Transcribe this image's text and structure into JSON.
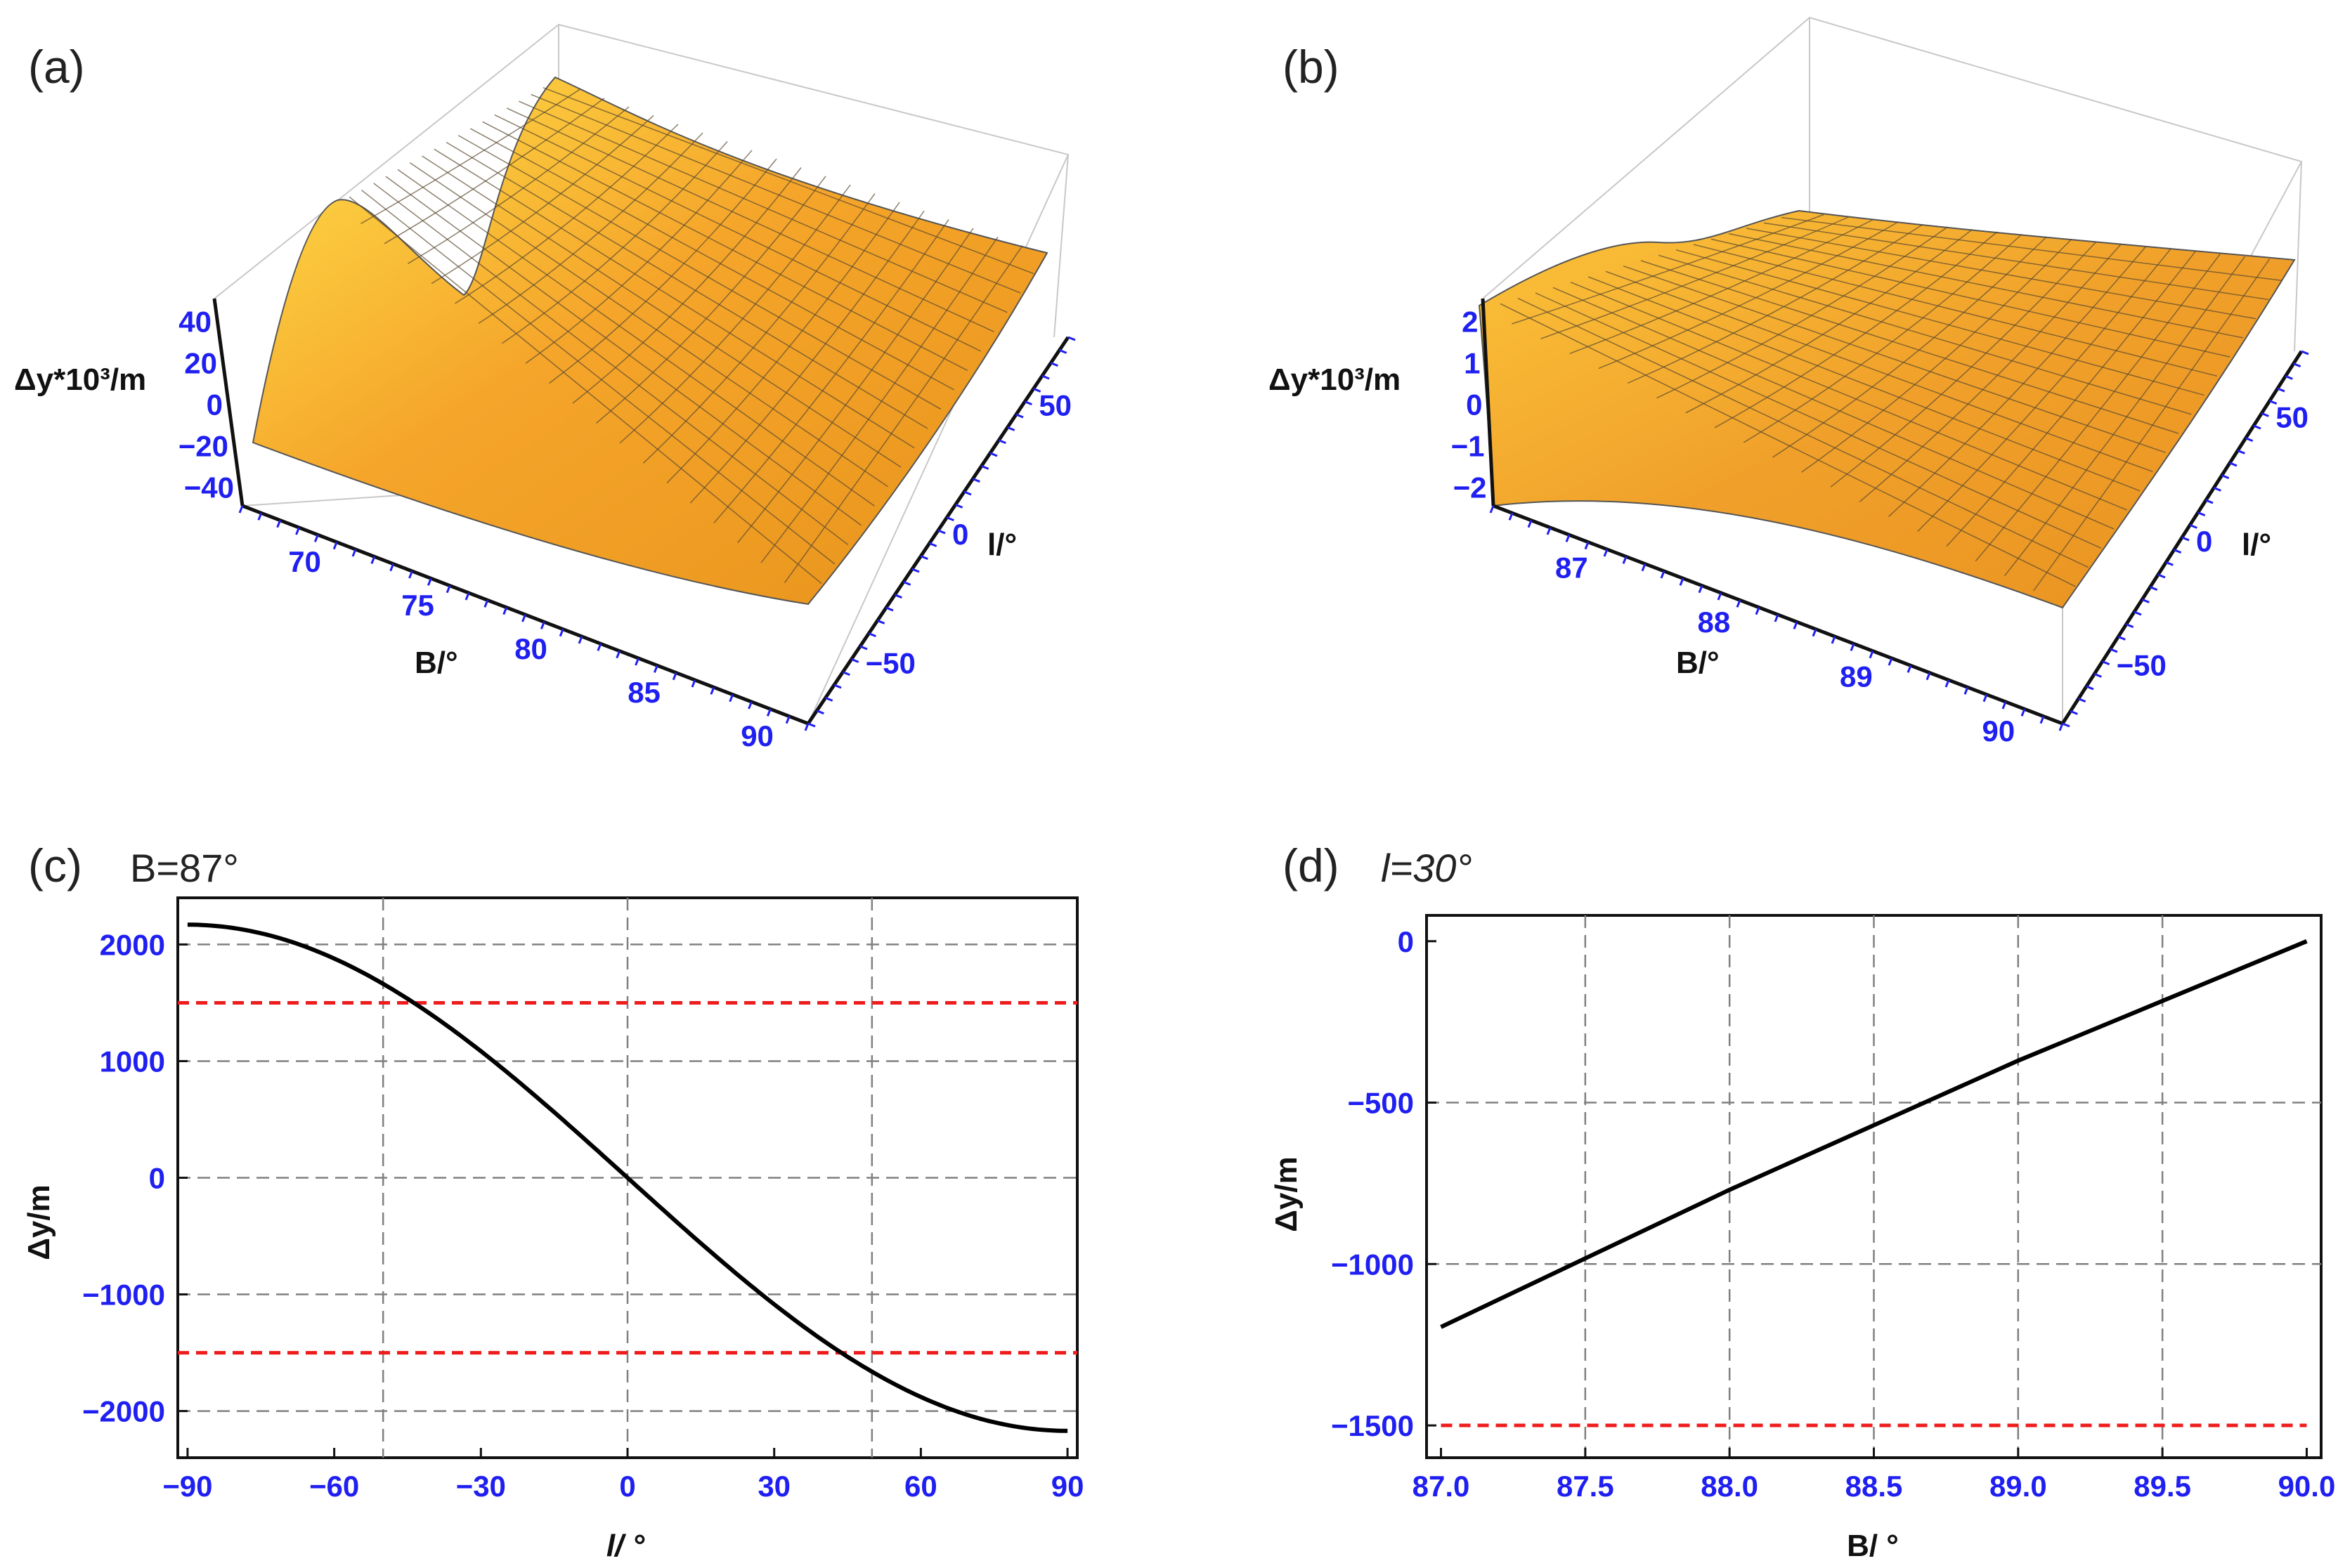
{
  "panels": {
    "a": {
      "label": "(a)"
    },
    "b": {
      "label": "(b)"
    },
    "c": {
      "label": "(c)",
      "condition": "B=87°"
    },
    "d": {
      "label": "(d)",
      "condition": "l=30°"
    }
  },
  "colors": {
    "curve": "#000000",
    "limit": "#ee1c1c",
    "grid": "#808080",
    "tick": "#1f1ff2",
    "surface_light": "#ffd43a",
    "surface_dark": "#e78a1e"
  },
  "chart_data": [
    {
      "id": "a",
      "type": "surface3d",
      "title": "",
      "xlabel": "B/°",
      "ylabel": "l/°",
      "zlabel": "Δy*10³/m",
      "x_ticks": [
        "70",
        "75",
        "80",
        "85",
        "90"
      ],
      "y_ticks": [
        "50",
        "0",
        "−50"
      ],
      "z_ticks": [
        "40",
        "20",
        "0",
        "−20",
        "−40"
      ],
      "xlim": [
        67,
        90
      ],
      "ylim": [
        -90,
        90
      ],
      "zlim": [
        -45,
        45
      ]
    },
    {
      "id": "b",
      "type": "surface3d",
      "title": "",
      "xlabel": "B/°",
      "ylabel": "l/°",
      "zlabel": "Δy*10³/m",
      "x_ticks": [
        "87",
        "88",
        "89",
        "90"
      ],
      "y_ticks": [
        "50",
        "0",
        "−50"
      ],
      "z_ticks": [
        "2",
        "1",
        "0",
        "−1",
        "−2"
      ],
      "xlim": [
        87,
        90
      ],
      "ylim": [
        -90,
        90
      ],
      "zlim": [
        -2.2,
        2.2
      ]
    },
    {
      "id": "c",
      "type": "line",
      "title": "B=87°",
      "xlabel": "l/ °",
      "ylabel": "Δy/m",
      "xlim": [
        -92,
        92
      ],
      "ylim": [
        -2400,
        2400
      ],
      "x_ticks": [
        -90,
        -60,
        -30,
        0,
        30,
        60,
        90
      ],
      "x_tick_labels": [
        "−90",
        "−60",
        "−30",
        "0",
        "30",
        "60",
        "90"
      ],
      "y_ticks": [
        -2000,
        -1000,
        0,
        1000,
        2000
      ],
      "y_tick_labels": [
        "−2000",
        "−1000",
        "0",
        "1000",
        "2000"
      ],
      "grid_x": [
        -50,
        0,
        50
      ],
      "grid_y": [
        -2000,
        -1000,
        0,
        1000,
        2000
      ],
      "series": [
        {
          "name": "Δy",
          "amplitude": 2170,
          "x_range": [
            -90,
            90
          ]
        },
        {
          "name": "upper limit",
          "value": 1500
        },
        {
          "name": "lower limit",
          "value": -1500
        }
      ]
    },
    {
      "id": "d",
      "type": "line",
      "title": "l=30°",
      "xlabel": "B/ °",
      "ylabel": "Δy/m",
      "xlim": [
        86.95,
        90.05
      ],
      "ylim": [
        -1600,
        80
      ],
      "x_ticks": [
        87.0,
        87.5,
        88.0,
        88.5,
        89.0,
        89.5,
        90.0
      ],
      "x_tick_labels": [
        "87.0",
        "87.5",
        "88.0",
        "88.5",
        "89.0",
        "89.5",
        "90.0"
      ],
      "y_ticks": [
        -1500,
        -1000,
        -500,
        0
      ],
      "y_tick_labels": [
        "−1500",
        "−1000",
        "−500",
        "0"
      ],
      "grid_x": [
        87.5,
        88.0,
        88.5,
        89.0,
        89.5
      ],
      "grid_y": [
        -1000,
        -500
      ],
      "series": [
        {
          "name": "Δy",
          "x": [
            87.0,
            88.0,
            89.0,
            90.0
          ],
          "y": [
            -1195,
            -770,
            -370,
            0
          ]
        },
        {
          "name": "limit",
          "value": -1500
        }
      ]
    }
  ]
}
